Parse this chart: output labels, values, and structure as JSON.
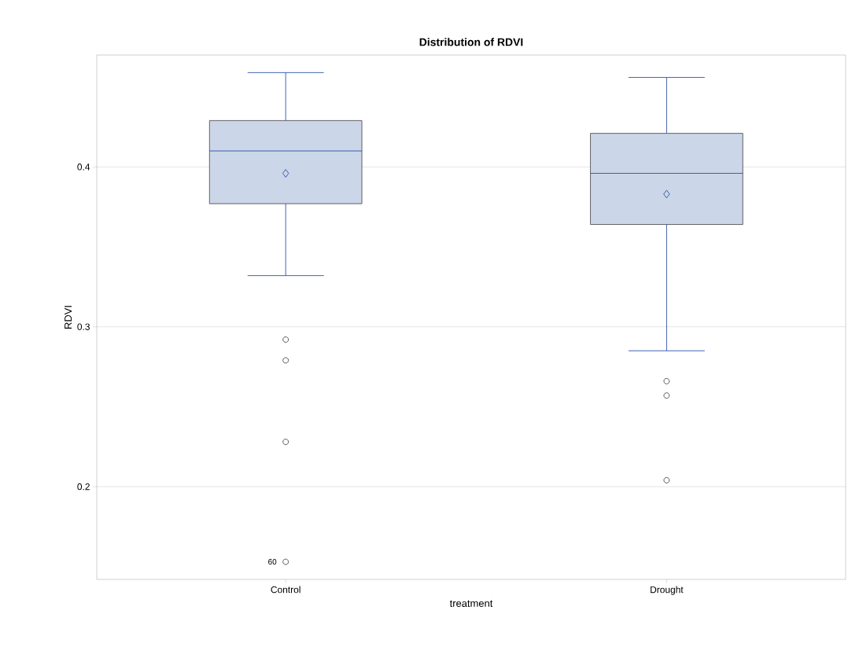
{
  "chart_data": {
    "type": "box",
    "title": "Distribution of RDVI",
    "xlabel": "treatment",
    "ylabel": "RDVI",
    "categories": [
      "Control",
      "Drought"
    ],
    "series": [
      {
        "color": "#cbd6e8",
        "boxes": [
          {
            "low": 0.332,
            "q1": 0.377,
            "median": 0.41,
            "q3": 0.429,
            "high": 0.459,
            "mean": 0.396,
            "outliers": [
              0.292,
              0.279,
              0.228,
              0.153
            ]
          },
          {
            "low": 0.285,
            "q1": 0.364,
            "median": 0.396,
            "q3": 0.421,
            "high": 0.456,
            "mean": 0.383,
            "outliers": [
              0.266,
              0.257,
              0.204
            ]
          }
        ]
      }
    ],
    "ylim": [
      0.142,
      0.47
    ],
    "yticks": [
      0.2,
      0.3,
      0.4
    ],
    "grid": "y",
    "annotations": [
      "60"
    ]
  }
}
